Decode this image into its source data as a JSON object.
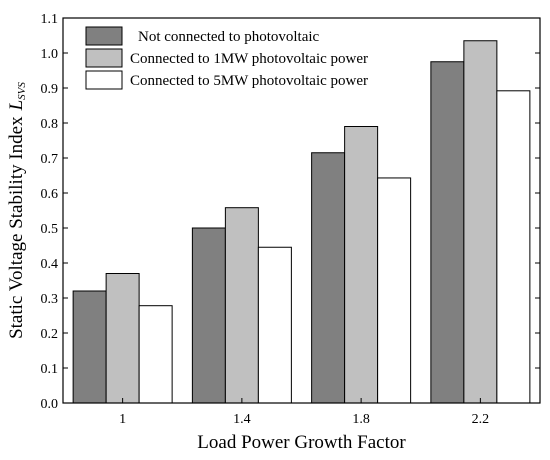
{
  "chart_data": {
    "type": "bar",
    "xlabel": "Load Power Growth Factor",
    "ylabel": "Static Voltage Stability Index",
    "ylabel_symbol": "L",
    "ylabel_subscript": "SVS",
    "categories": [
      "1",
      "1.4",
      "1.8",
      "2.2"
    ],
    "ylim": [
      0,
      1.1
    ],
    "yticks": [
      "0.0",
      "0.1",
      "0.2",
      "0.3",
      "0.4",
      "0.5",
      "0.6",
      "0.7",
      "0.8",
      "0.9",
      "1.0",
      "1.1"
    ],
    "grid": false,
    "legend_position": "top-left",
    "series": [
      {
        "name": "Not connected to photovoltaic",
        "color": "#808080",
        "values": [
          0.32,
          0.5,
          0.715,
          0.975
        ]
      },
      {
        "name": "Connected to 1MW photovoltaic power",
        "color": "#c0c0c0",
        "values": [
          0.37,
          0.558,
          0.79,
          1.035
        ]
      },
      {
        "name": "Connected to 5MW photovoltaic power",
        "color": "#ffffff",
        "values": [
          0.278,
          0.445,
          0.643,
          0.892
        ]
      }
    ]
  }
}
